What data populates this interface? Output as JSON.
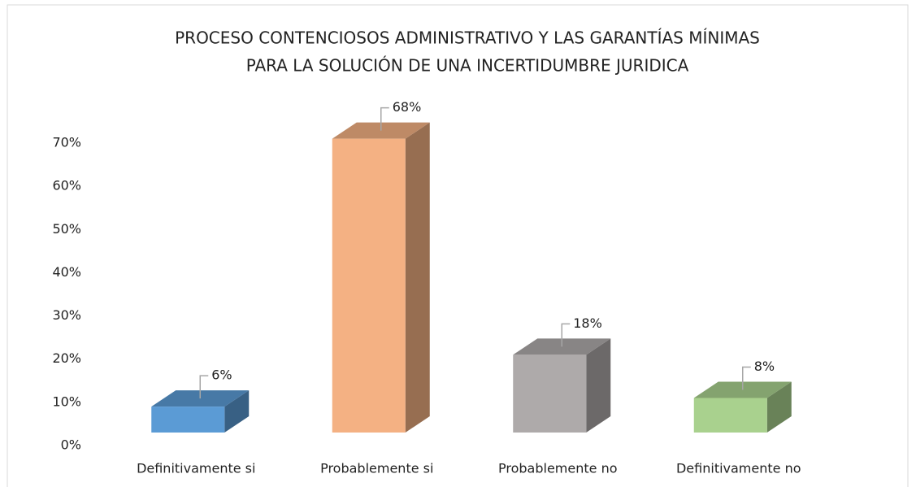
{
  "chart_data": {
    "type": "bar3d",
    "title": [
      "PROCESO CONTENCIOSOS ADMINISTRATIVO Y LAS GARANTÍAS MÍNIMAS",
      "PARA LA SOLUCIÓN DE UNA INCERTIDUMBRE JURIDICA"
    ],
    "categories": [
      "Definitivamente si",
      "Probablemente si",
      "Probablemente no",
      "Definitivamente no"
    ],
    "values": [
      6,
      68,
      18,
      8
    ],
    "value_labels": [
      "6%",
      "68%",
      "18%",
      "8%"
    ],
    "colors": [
      "#5b9bd5",
      "#f4b183",
      "#aeaaaa",
      "#a9d18e"
    ],
    "ylim": [
      0,
      70
    ],
    "yticks": [
      {
        "value": 0,
        "label": "0%"
      },
      {
        "value": 10,
        "label": "10%"
      },
      {
        "value": 20,
        "label": "20%"
      },
      {
        "value": 30,
        "label": "30%"
      },
      {
        "value": 40,
        "label": "40%"
      },
      {
        "value": 50,
        "label": "50%"
      },
      {
        "value": 60,
        "label": "60%"
      },
      {
        "value": 70,
        "label": "70%"
      }
    ],
    "grid": false
  }
}
